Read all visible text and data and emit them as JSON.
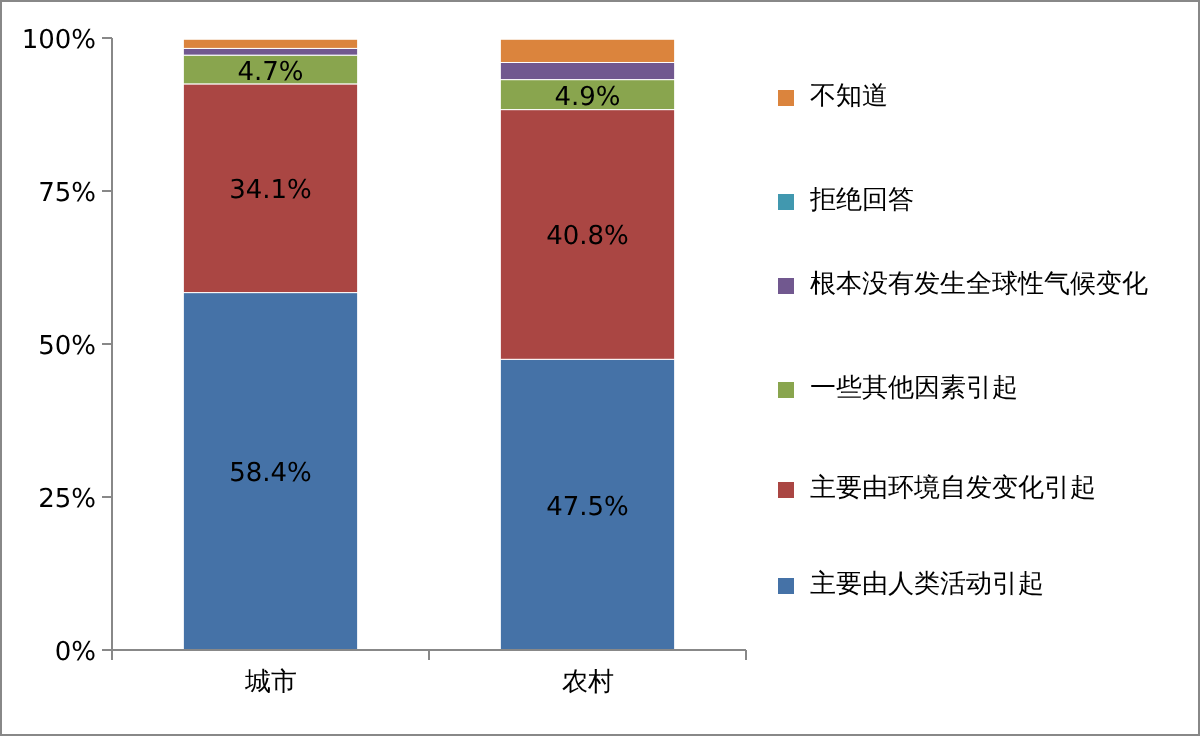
{
  "chart_data": {
    "type": "bar",
    "stacked": true,
    "categories": [
      "城市",
      "农村"
    ],
    "legend": "right",
    "grid": false,
    "ylim": [
      0,
      100
    ],
    "yticks": [
      {
        "value": 0,
        "label": "0%"
      },
      {
        "value": 25,
        "label": "25%"
      },
      {
        "value": 50,
        "label": "50%"
      },
      {
        "value": 75,
        "label": "75%"
      },
      {
        "value": 100,
        "label": "100%"
      }
    ],
    "series": [
      {
        "name": "主要由人类活动引起",
        "color": "#4572a7",
        "values": [
          58.4,
          47.5
        ],
        "value_labels": [
          "58.4%",
          "47.5%"
        ]
      },
      {
        "name": "主要由环境自发变化引起",
        "color": "#aa4643",
        "values": [
          34.1,
          40.8
        ],
        "value_labels": [
          "34.1%",
          "40.8%"
        ]
      },
      {
        "name": "一些其他因素引起",
        "color": "#89a54e",
        "values": [
          4.7,
          4.9
        ],
        "value_labels": [
          "4.7%",
          "4.9%"
        ]
      },
      {
        "name": "根本没有发生全球性气候变化",
        "color": "#71588f",
        "values": [
          1.1,
          2.8
        ]
      },
      {
        "name": "拒绝回答",
        "color": "#4198af",
        "values": [
          null,
          null
        ]
      },
      {
        "name": "不知道",
        "color": "#db843d",
        "values": [
          1.5,
          3.8
        ]
      }
    ]
  }
}
